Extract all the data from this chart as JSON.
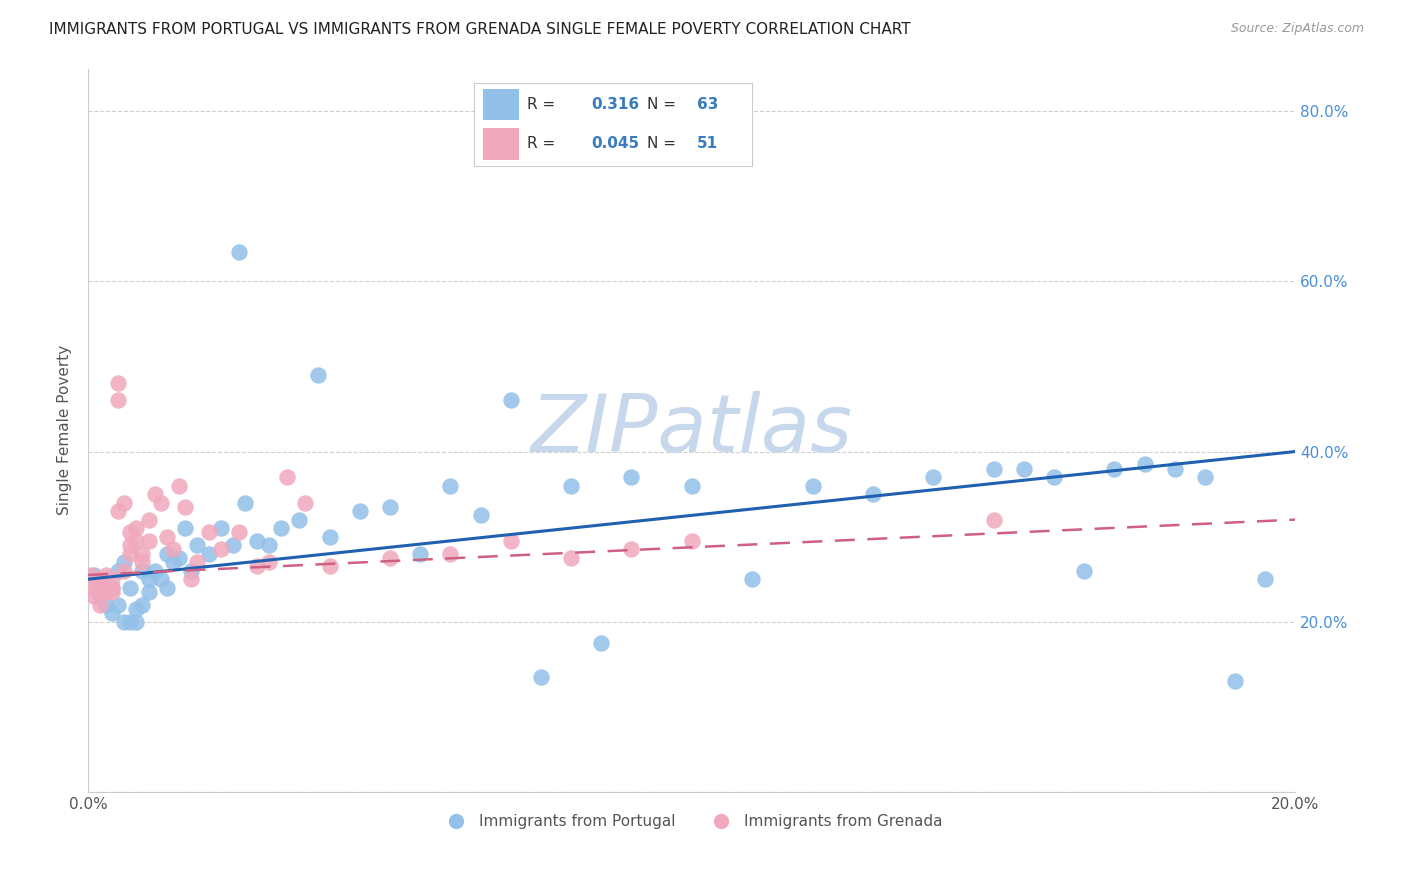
{
  "title": "IMMIGRANTS FROM PORTUGAL VS IMMIGRANTS FROM GRENADA SINGLE FEMALE POVERTY CORRELATION CHART",
  "source": "Source: ZipAtlas.com",
  "ylabel": "Single Female Poverty",
  "xlim": [
    0.0,
    0.2
  ],
  "ylim": [
    0.0,
    0.85
  ],
  "portugal_R": 0.316,
  "portugal_N": 63,
  "grenada_R": 0.045,
  "grenada_N": 51,
  "blue_color": "#92c0e8",
  "pink_color": "#f0a8bc",
  "blue_line_color": "#2060b0",
  "pink_line_color": "#d06080",
  "watermark": "ZIPatlas",
  "watermark_color": "#c8d8ec",
  "portugal_x": [
    0.001,
    0.002,
    0.003,
    0.003,
    0.004,
    0.004,
    0.005,
    0.005,
    0.006,
    0.006,
    0.007,
    0.007,
    0.008,
    0.008,
    0.009,
    0.009,
    0.01,
    0.01,
    0.011,
    0.012,
    0.013,
    0.013,
    0.014,
    0.015,
    0.016,
    0.017,
    0.018,
    0.02,
    0.022,
    0.024,
    0.026,
    0.028,
    0.03,
    0.032,
    0.035,
    0.038,
    0.04,
    0.045,
    0.05,
    0.055,
    0.06,
    0.065,
    0.07,
    0.08,
    0.09,
    0.1,
    0.11,
    0.12,
    0.13,
    0.14,
    0.15,
    0.155,
    0.16,
    0.165,
    0.17,
    0.175,
    0.18,
    0.185,
    0.19,
    0.195,
    0.025,
    0.075,
    0.085
  ],
  "portugal_y": [
    0.255,
    0.23,
    0.22,
    0.25,
    0.24,
    0.21,
    0.26,
    0.22,
    0.27,
    0.2,
    0.2,
    0.24,
    0.2,
    0.215,
    0.26,
    0.22,
    0.235,
    0.25,
    0.26,
    0.25,
    0.28,
    0.24,
    0.27,
    0.275,
    0.31,
    0.26,
    0.29,
    0.28,
    0.31,
    0.29,
    0.34,
    0.295,
    0.29,
    0.31,
    0.32,
    0.49,
    0.3,
    0.33,
    0.335,
    0.28,
    0.36,
    0.325,
    0.46,
    0.36,
    0.37,
    0.36,
    0.25,
    0.36,
    0.35,
    0.37,
    0.38,
    0.38,
    0.37,
    0.26,
    0.38,
    0.385,
    0.38,
    0.37,
    0.13,
    0.25,
    0.635,
    0.135,
    0.175
  ],
  "grenada_x": [
    0.0005,
    0.001,
    0.001,
    0.0015,
    0.002,
    0.002,
    0.002,
    0.003,
    0.003,
    0.003,
    0.003,
    0.004,
    0.004,
    0.004,
    0.005,
    0.005,
    0.005,
    0.006,
    0.006,
    0.007,
    0.007,
    0.007,
    0.008,
    0.008,
    0.009,
    0.009,
    0.01,
    0.01,
    0.011,
    0.012,
    0.013,
    0.014,
    0.015,
    0.016,
    0.017,
    0.018,
    0.02,
    0.022,
    0.025,
    0.028,
    0.03,
    0.033,
    0.036,
    0.04,
    0.05,
    0.06,
    0.07,
    0.08,
    0.09,
    0.1,
    0.15
  ],
  "grenada_y": [
    0.255,
    0.24,
    0.23,
    0.245,
    0.235,
    0.22,
    0.25,
    0.24,
    0.255,
    0.245,
    0.235,
    0.25,
    0.24,
    0.235,
    0.46,
    0.48,
    0.33,
    0.26,
    0.34,
    0.305,
    0.29,
    0.28,
    0.31,
    0.295,
    0.28,
    0.27,
    0.32,
    0.295,
    0.35,
    0.34,
    0.3,
    0.285,
    0.36,
    0.335,
    0.25,
    0.27,
    0.305,
    0.285,
    0.305,
    0.265,
    0.27,
    0.37,
    0.34,
    0.265,
    0.275,
    0.28,
    0.295,
    0.275,
    0.285,
    0.295,
    0.32
  ]
}
